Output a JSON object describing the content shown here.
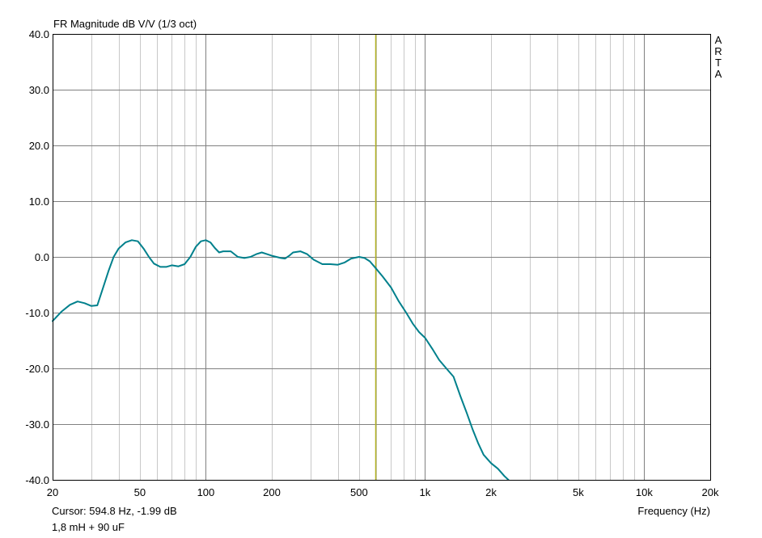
{
  "chart_data": {
    "type": "line",
    "title": "FR Magnitude dB V/V (1/3 oct)",
    "xlabel": "Frequency (Hz)",
    "ylabel": "",
    "x_scale": "log",
    "xlim": [
      20,
      20000
    ],
    "ylim": [
      -40,
      40
    ],
    "x_ticks": [
      20,
      50,
      100,
      200,
      500,
      1000,
      2000,
      5000,
      10000,
      20000
    ],
    "x_tick_labels": [
      "20",
      "50",
      "100",
      "200",
      "500",
      "1k",
      "2k",
      "5k",
      "10k",
      "20k"
    ],
    "y_ticks": [
      40,
      30,
      20,
      10,
      0,
      -10,
      -20,
      -30,
      -40
    ],
    "y_tick_labels": [
      "40.0",
      "30.0",
      "20.0",
      "10.0",
      "0.0",
      "-10.0",
      "-20.0",
      "-30.0",
      "-40.0"
    ],
    "grid": true,
    "watermark": [
      "A",
      "R",
      "T",
      "A"
    ],
    "cursor": {
      "x": 594.8,
      "label": "Cursor:",
      "value_text": "594.8 Hz, -1.99 dB",
      "color": "#b3b323"
    },
    "subtitle": "1,8 mH + 90 uF",
    "series": [
      {
        "color": "#00808c",
        "x": [
          20,
          22,
          24,
          26,
          28,
          30,
          32,
          34,
          36,
          38,
          40,
          43,
          46,
          49,
          52,
          55,
          58,
          62,
          66,
          70,
          75,
          80,
          85,
          90,
          95,
          100,
          105,
          110,
          115,
          120,
          130,
          140,
          150,
          160,
          170,
          180,
          190,
          200,
          210,
          220,
          230,
          240,
          250,
          270,
          290,
          310,
          340,
          370,
          400,
          430,
          460,
          500,
          530,
          560,
          594.8,
          640,
          700,
          760,
          820,
          880,
          940,
          1000,
          1080,
          1160,
          1250,
          1350,
          1450,
          1550,
          1650,
          1750,
          1850,
          2000,
          2150,
          2300,
          2400
        ],
        "y": [
          -11.5,
          -9.8,
          -8.6,
          -8.0,
          -8.3,
          -8.8,
          -8.7,
          -5.5,
          -2.5,
          0,
          1.5,
          2.6,
          3.0,
          2.8,
          1.5,
          0,
          -1.2,
          -1.8,
          -1.8,
          -1.5,
          -1.7,
          -1.3,
          0,
          1.8,
          2.8,
          3.0,
          2.6,
          1.6,
          0.8,
          1.0,
          1.0,
          0,
          -0.2,
          0,
          0.5,
          0.8,
          0.5,
          0.2,
          0.0,
          -0.2,
          -0.3,
          0.2,
          0.8,
          1.0,
          0.5,
          -0.5,
          -1.3,
          -1.3,
          -1.4,
          -1.0,
          -0.3,
          0.0,
          -0.2,
          -0.8,
          -2.0,
          -3.5,
          -5.5,
          -8.0,
          -10.0,
          -12.0,
          -13.5,
          -14.5,
          -16.5,
          -18.5,
          -20.0,
          -21.5,
          -25.0,
          -28.0,
          -31.0,
          -33.5,
          -35.5,
          -37.0,
          -38.0,
          -39.3,
          -40.0
        ]
      }
    ]
  }
}
